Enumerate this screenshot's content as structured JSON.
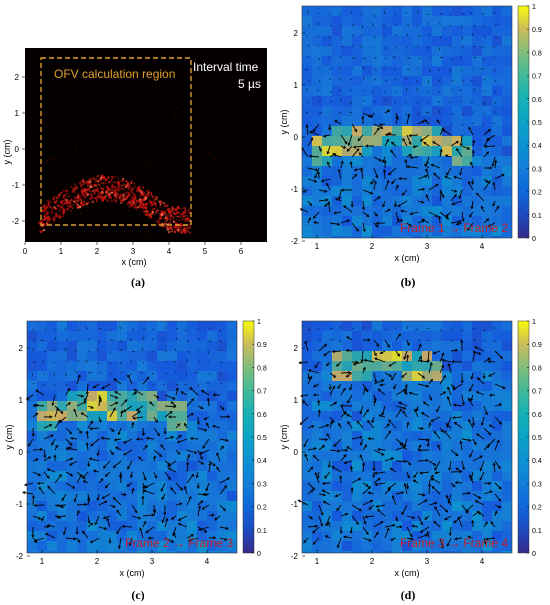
{
  "panels": {
    "a": {
      "caption": "(a)",
      "overlay_label": "OFV calculation region",
      "interval_label": "Interval time",
      "interval_value": "5 µs",
      "xlabel": "x (cm)",
      "ylabel": "y (cm)",
      "xticks": [
        "0",
        "1",
        "2",
        "3",
        "4",
        "5",
        "6"
      ],
      "yticks": [
        "2",
        "1",
        "0",
        "-1",
        "-2"
      ]
    },
    "b": {
      "caption": "(b)",
      "frame_label": "Frame 1 → Frame 2",
      "xlabel": "x (cm)",
      "ylabel": "y (cm)"
    },
    "c": {
      "caption": "(c)",
      "frame_label": "Frame 2 → Frame 3",
      "xlabel": "x (cm)",
      "ylabel": "y (cm)"
    },
    "d": {
      "caption": "(d)",
      "frame_label": "Frame 3 → Frame 4",
      "xlabel": "x (cm)",
      "ylabel": "y (cm)"
    }
  },
  "vector_field_axes": {
    "xticks": [
      "1",
      "2",
      "3",
      "4"
    ],
    "yticks": [
      "2",
      "1",
      "0",
      "-1",
      "-2"
    ]
  },
  "colorbar": {
    "ticks": [
      "1",
      "0.9",
      "0.8",
      "0.7",
      "0.6",
      "0.5",
      "0.4",
      "0.3",
      "0.2",
      "0.1",
      "0"
    ]
  },
  "colors": {
    "field_bg": "#3a48d6",
    "overlay": "#e0a030",
    "frame_text": "#c0202a",
    "arrow": "#000000"
  }
}
